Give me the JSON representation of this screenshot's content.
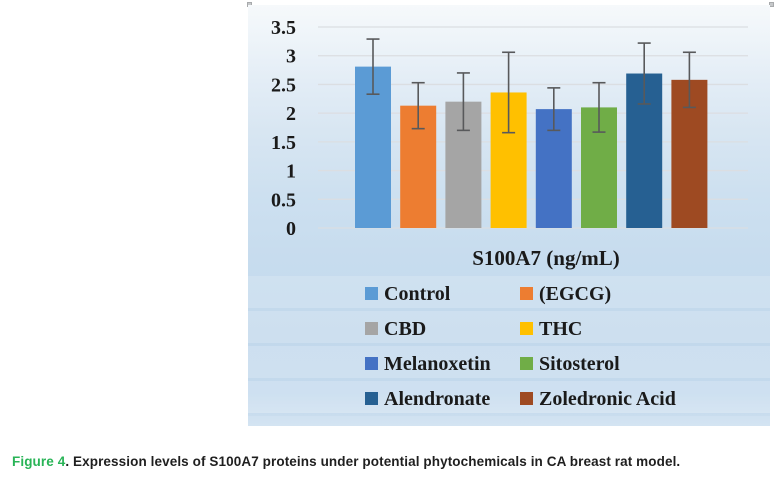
{
  "chart_data": {
    "type": "bar",
    "title": "",
    "xlabel": "S100A7 (ng/mL)",
    "ylabel": "",
    "ylim": [
      0,
      3.5
    ],
    "ytick_step": 0.5,
    "ytick_labels": [
      "0",
      "0.5",
      "1",
      "1.5",
      "2",
      "2.5",
      "3",
      "3.5"
    ],
    "grid": true,
    "legend_position": "bottom",
    "error_bars": true,
    "series": [
      {
        "name": "Control",
        "value": 2.81,
        "error": 0.48,
        "color": "#5B9BD5"
      },
      {
        "name": "(EGCG)",
        "value": 2.13,
        "error": 0.4,
        "color": "#ED7D31"
      },
      {
        "name": "CBD",
        "value": 2.2,
        "error": 0.5,
        "color": "#A5A5A5"
      },
      {
        "name": "THC",
        "value": 2.36,
        "error": 0.7,
        "color": "#FFC000"
      },
      {
        "name": "Melanoxetin",
        "value": 2.07,
        "error": 0.37,
        "color": "#4472C4"
      },
      {
        "name": "Sitosterol",
        "value": 2.1,
        "error": 0.43,
        "color": "#70AD47"
      },
      {
        "name": "Alendronate",
        "value": 2.69,
        "error": 0.53,
        "color": "#266092"
      },
      {
        "name": "Zoledronic Acid",
        "value": 2.58,
        "error": 0.48,
        "color": "#9E4A22"
      }
    ]
  },
  "caption": {
    "label": "Figure 4",
    "text": ". Expression levels of S100A7 proteins under potential phytochemicals in CA breast rat model."
  },
  "colors": {
    "caption_green": "#29B457",
    "caption_text": "#1F1F1F",
    "error_bar": "#58595B",
    "grid": "#DBDEE2",
    "axis_text": "#1A1A1A",
    "panel_top": "#F6F9FB",
    "panel_bottom": "#C4DAEE"
  }
}
